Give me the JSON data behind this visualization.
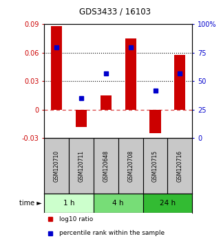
{
  "title": "GDS3433 / 16103",
  "samples": [
    "GSM120710",
    "GSM120711",
    "GSM120648",
    "GSM120708",
    "GSM120715",
    "GSM120716"
  ],
  "log10_ratio": [
    0.088,
    -0.018,
    0.015,
    0.075,
    -0.025,
    0.058
  ],
  "percentile_rank": [
    80,
    35,
    57,
    80,
    42,
    57
  ],
  "bar_color": "#cc0000",
  "dot_color": "#0000cc",
  "ylim_left": [
    -0.03,
    0.09
  ],
  "ylim_right": [
    0,
    100
  ],
  "yticks_left": [
    -0.03,
    0,
    0.03,
    0.06,
    0.09
  ],
  "yticks_right": [
    0,
    25,
    50,
    75,
    100
  ],
  "ytick_labels_left": [
    "-0.03",
    "0",
    "0.03",
    "0.06",
    "0.09"
  ],
  "ytick_labels_right": [
    "0",
    "25",
    "50",
    "75",
    "100%"
  ],
  "hlines_dotted": [
    0.03,
    0.06
  ],
  "hline_dashed": 0,
  "time_groups": [
    {
      "label": "1 h",
      "start": 0,
      "end": 2,
      "color": "#ccffcc"
    },
    {
      "label": "4 h",
      "start": 2,
      "end": 4,
      "color": "#77dd77"
    },
    {
      "label": "24 h",
      "start": 4,
      "end": 6,
      "color": "#33bb33"
    }
  ],
  "legend_items": [
    {
      "label": "log10 ratio",
      "color": "#cc0000",
      "marker": "s"
    },
    {
      "label": "percentile rank within the sample",
      "color": "#0000cc",
      "marker": "s"
    }
  ],
  "time_label": "time ►",
  "background_color": "#ffffff",
  "bar_width": 0.45
}
